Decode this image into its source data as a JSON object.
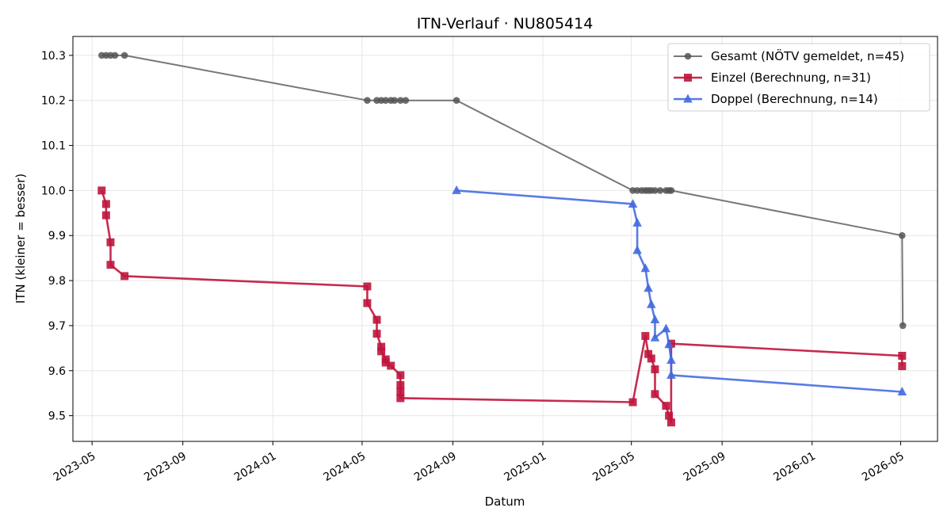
{
  "chart_data": {
    "type": "line",
    "title": "ITN-Verlauf · NU805414",
    "xlabel": "Datum",
    "ylabel": "ITN  (kleiner = besser)",
    "x_type": "date",
    "xlim": [
      "2023-04-05",
      "2026-06-20"
    ],
    "ylim": [
      9.443,
      10.342
    ],
    "x_ticks": [
      "2023-05-01",
      "2023-09-01",
      "2024-01-01",
      "2024-05-01",
      "2024-09-01",
      "2025-01-01",
      "2025-05-01",
      "2025-09-01",
      "2026-01-01",
      "2026-05-01"
    ],
    "x_tick_labels": [
      "2023-05",
      "2023-09",
      "2024-01",
      "2024-05",
      "2024-09",
      "2025-01",
      "2025-05",
      "2025-09",
      "2026-01",
      "2026-05"
    ],
    "y_ticks": [
      9.5,
      9.6,
      9.7,
      9.8,
      9.9,
      10.0,
      10.1,
      10.2,
      10.3
    ],
    "y_tick_labels": [
      "9.5",
      "9.6",
      "9.7",
      "9.8",
      "9.9",
      "10.0",
      "10.1",
      "10.2",
      "10.3"
    ],
    "grid": true,
    "legend_position": "top-right",
    "series": [
      {
        "name": "Gesamt (NÖTV gemeldet, n=45)",
        "color": "#555555",
        "marker": "circle",
        "points": [
          [
            "2023-05-14",
            10.3
          ],
          [
            "2023-05-20",
            10.3
          ],
          [
            "2023-05-26",
            10.3
          ],
          [
            "2023-06-01",
            10.3
          ],
          [
            "2023-06-14",
            10.3
          ],
          [
            "2024-05-08",
            10.2
          ],
          [
            "2024-05-21",
            10.2
          ],
          [
            "2024-05-27",
            10.2
          ],
          [
            "2024-06-02",
            10.2
          ],
          [
            "2024-06-09",
            10.2
          ],
          [
            "2024-06-14",
            10.2
          ],
          [
            "2024-06-22",
            10.2
          ],
          [
            "2024-06-29",
            10.2
          ],
          [
            "2024-09-06",
            10.2
          ],
          [
            "2025-05-03",
            10.0
          ],
          [
            "2025-05-09",
            10.0
          ],
          [
            "2025-05-15",
            10.0
          ],
          [
            "2025-05-20",
            10.0
          ],
          [
            "2025-05-24",
            10.0
          ],
          [
            "2025-05-28",
            10.0
          ],
          [
            "2025-06-02",
            10.0
          ],
          [
            "2025-06-09",
            10.0
          ],
          [
            "2025-06-17",
            10.0
          ],
          [
            "2025-06-21",
            10.0
          ],
          [
            "2025-06-24",
            10.0
          ],
          [
            "2026-05-03",
            9.9
          ],
          [
            "2026-05-04",
            9.7
          ]
        ]
      },
      {
        "name": "Einzel (Berechnung, n=31)",
        "color": "#c0143c",
        "marker": "square",
        "points": [
          [
            "2023-05-14",
            10.0
          ],
          [
            "2023-05-20",
            9.97
          ],
          [
            "2023-05-20",
            9.945
          ],
          [
            "2023-05-26",
            9.885
          ],
          [
            "2023-05-26",
            9.835
          ],
          [
            "2023-06-14",
            9.81
          ],
          [
            "2024-05-08",
            9.787
          ],
          [
            "2024-05-08",
            9.75
          ],
          [
            "2024-05-21",
            9.713
          ],
          [
            "2024-05-21",
            9.682
          ],
          [
            "2024-05-27",
            9.653
          ],
          [
            "2024-05-27",
            9.643
          ],
          [
            "2024-06-02",
            9.625
          ],
          [
            "2024-06-02",
            9.618
          ],
          [
            "2024-06-09",
            9.611
          ],
          [
            "2024-06-22",
            9.59
          ],
          [
            "2024-06-22",
            9.568
          ],
          [
            "2024-06-22",
            9.553
          ],
          [
            "2024-06-22",
            9.539
          ],
          [
            "2025-05-03",
            9.53
          ],
          [
            "2025-05-20",
            9.677
          ],
          [
            "2025-05-24",
            9.637
          ],
          [
            "2025-05-28",
            9.627
          ],
          [
            "2025-06-02",
            9.603
          ],
          [
            "2025-06-02",
            9.548
          ],
          [
            "2025-06-17",
            9.522
          ],
          [
            "2025-06-21",
            9.5
          ],
          [
            "2025-06-24",
            9.485
          ],
          [
            "2025-06-24",
            9.66
          ],
          [
            "2026-05-03",
            9.633
          ],
          [
            "2026-05-03",
            9.61
          ]
        ]
      },
      {
        "name": "Doppel (Berechnung, n=14)",
        "color": "#4169e1",
        "marker": "triangle",
        "points": [
          [
            "2024-09-06",
            10.0
          ],
          [
            "2025-05-03",
            9.97
          ],
          [
            "2025-05-09",
            9.928
          ],
          [
            "2025-05-09",
            9.867
          ],
          [
            "2025-05-20",
            9.827
          ],
          [
            "2025-05-24",
            9.783
          ],
          [
            "2025-05-28",
            9.747
          ],
          [
            "2025-06-02",
            9.713
          ],
          [
            "2025-06-02",
            9.673
          ],
          [
            "2025-06-17",
            9.693
          ],
          [
            "2025-06-21",
            9.658
          ],
          [
            "2025-06-24",
            9.623
          ],
          [
            "2025-06-24",
            9.59
          ],
          [
            "2026-05-03",
            9.553
          ]
        ]
      }
    ]
  }
}
